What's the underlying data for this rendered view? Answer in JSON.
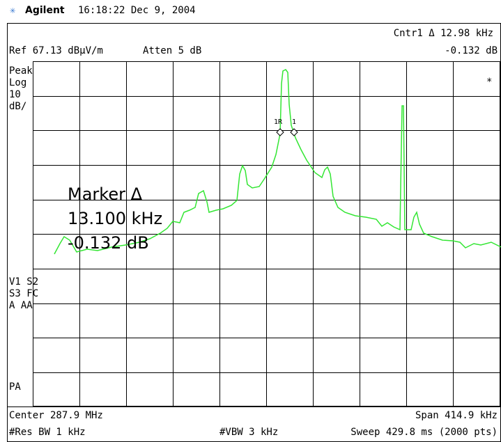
{
  "header": {
    "brand": "Agilent",
    "timestamp": "16:18:22  Dec 9, 2004"
  },
  "status": {
    "marker_readout": "Cntr1 Δ  12.98 kHz",
    "marker_level": "-0.132 dB",
    "reference": "Ref 67.13 dBμV/m",
    "attenuation": "Atten 5 dB",
    "flag": "*"
  },
  "left_panel": {
    "detector": "Peak",
    "scale_type": "Log",
    "scale_value": "10",
    "scale_unit": "dB/",
    "trace_flags_1": "V1  S2",
    "trace_flags_2": "S3  FC",
    "trace_flags_3": "A   AA",
    "pa": "PA"
  },
  "marker": {
    "title": "Marker Δ",
    "frequency": "13.100 kHz",
    "level": "-0.132 dB",
    "label_left": "1R",
    "label_right": "1"
  },
  "footer": {
    "center": "Center 287.9 MHz",
    "span": "Span 414.9 kHz",
    "rbw": "#Res BW 1 kHz",
    "vbw": "#VBW 3 kHz",
    "sweep": "Sweep 429.8 ms (2000 pts)"
  }
}
